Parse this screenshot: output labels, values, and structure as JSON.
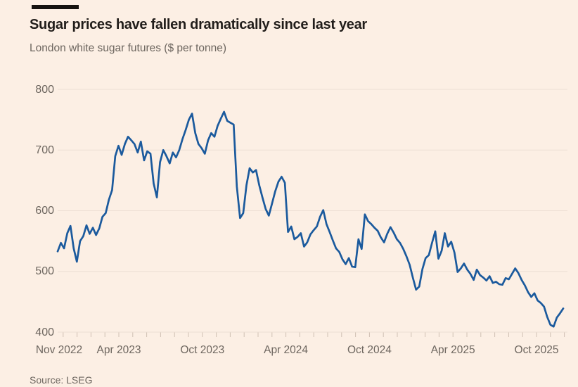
{
  "page": {
    "background": "#fcefe4",
    "accent_bar_color": "#171310"
  },
  "header": {
    "title": "Sugar prices have fallen dramatically since last year",
    "subtitle": "London white sugar futures ($ per tonne)"
  },
  "footer": {
    "source": "Source: LSEG"
  },
  "chart_data": {
    "type": "line",
    "title": "Sugar prices have fallen dramatically since last year",
    "subtitle": "London white sugar futures ($ per tonne)",
    "source": "Source: LSEG",
    "ylabel": "$ per tonne",
    "ylim": [
      400,
      800
    ],
    "y_ticks": [
      800,
      700,
      600,
      500,
      400
    ],
    "grid": "horizontal",
    "legend": "none",
    "line_color": "#1b5a9d",
    "gridline_color": "#eddfd3",
    "tick_color": "#cfc0b3",
    "x_axis": {
      "start": "Nov 2022",
      "end": "Nov 2025",
      "minor_tick_interval": "monthly",
      "months_shown": 37,
      "label_ticks": [
        "Nov 2022",
        "Apr 2023",
        "Oct 2023",
        "Apr 2024",
        "Oct 2024",
        "Apr 2025",
        "Oct 2025"
      ],
      "label_month_offsets": [
        0,
        5,
        11,
        17,
        23,
        29,
        35
      ]
    },
    "series": [
      {
        "name": "London white sugar futures ($ per tonne)",
        "sampling": "weekly",
        "start": "mid-Nov 2022",
        "end": "late-Nov 2025",
        "values": [
          533,
          547,
          538,
          563,
          575,
          538,
          516,
          550,
          558,
          576,
          562,
          572,
          560,
          571,
          590,
          596,
          618,
          634,
          690,
          707,
          692,
          710,
          722,
          716,
          710,
          696,
          714,
          683,
          698,
          694,
          645,
          622,
          680,
          700,
          690,
          678,
          696,
          688,
          700,
          718,
          733,
          750,
          760,
          728,
          710,
          703,
          694,
          716,
          728,
          722,
          740,
          752,
          763,
          748,
          745,
          742,
          640,
          588,
          596,
          642,
          670,
          663,
          667,
          642,
          622,
          603,
          592,
          612,
          632,
          648,
          656,
          646,
          565,
          574,
          553,
          557,
          563,
          541,
          548,
          561,
          568,
          574,
          590,
          601,
          578,
          565,
          551,
          538,
          532,
          520,
          512,
          522,
          508,
          507,
          553,
          537,
          594,
          583,
          578,
          572,
          567,
          556,
          548,
          562,
          573,
          564,
          553,
          547,
          537,
          525,
          511,
          490,
          470,
          475,
          504,
          522,
          527,
          547,
          566,
          521,
          534,
          563,
          541,
          549,
          531,
          499,
          505,
          513,
          503,
          496,
          486,
          503,
          494,
          490,
          485,
          492,
          481,
          483,
          479,
          478,
          489,
          487,
          496,
          505,
          497,
          486,
          477,
          466,
          458,
          464,
          452,
          448,
          442,
          425,
          412,
          409,
          424,
          431,
          439
        ]
      }
    ]
  }
}
